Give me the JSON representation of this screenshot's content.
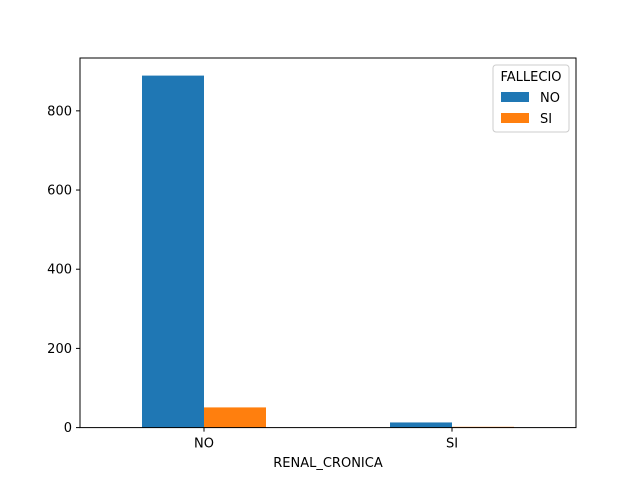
{
  "chart_data": {
    "type": "bar",
    "title": "",
    "xlabel": "RENAL_CRONICA",
    "ylabel": "",
    "categories": [
      "NO",
      "SI"
    ],
    "series": [
      {
        "name": "NO",
        "values": [
          889,
          13
        ],
        "color": "#1f77b4"
      },
      {
        "name": "SI",
        "values": [
          51,
          2
        ],
        "color": "#ff7f0e"
      }
    ],
    "ylim": [
      0,
      933.45
    ],
    "yticks": [
      0,
      200,
      400,
      600,
      800
    ],
    "grid": false,
    "legend": {
      "title": "FALLECIO",
      "placement": "top-right"
    }
  }
}
